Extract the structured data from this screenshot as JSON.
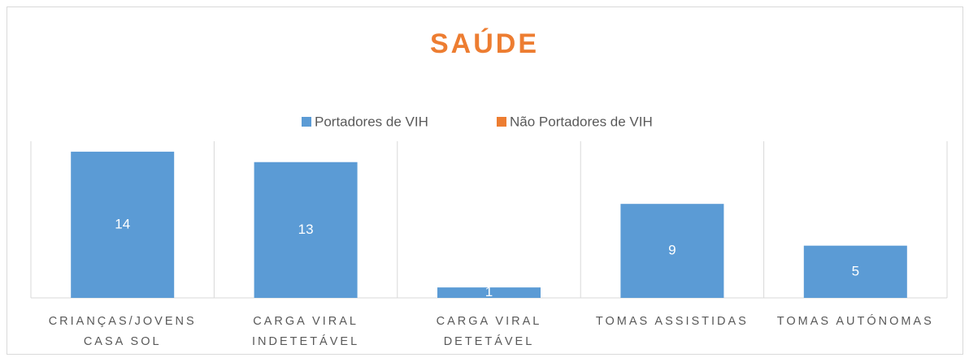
{
  "chart_data": {
    "type": "bar",
    "title": "SAÚDE",
    "categories": [
      "CRIANÇAS/JOVENS CASA SOL",
      "CARGA VIRAL INDETETÁVEL",
      "CARGA VIRAL DETETÁVEL",
      "TOMAS ASSISTIDAS",
      "TOMAS AUTÓNOMAS"
    ],
    "series": [
      {
        "name": "Portadores de VIH",
        "color": "#5b9bd5",
        "values": [
          14,
          13,
          1,
          9,
          5
        ]
      },
      {
        "name": "Não Portadores de VIH",
        "color": "#ed7d31",
        "values": [
          null,
          null,
          null,
          null,
          null
        ]
      }
    ],
    "ylim": [
      0,
      15
    ]
  }
}
